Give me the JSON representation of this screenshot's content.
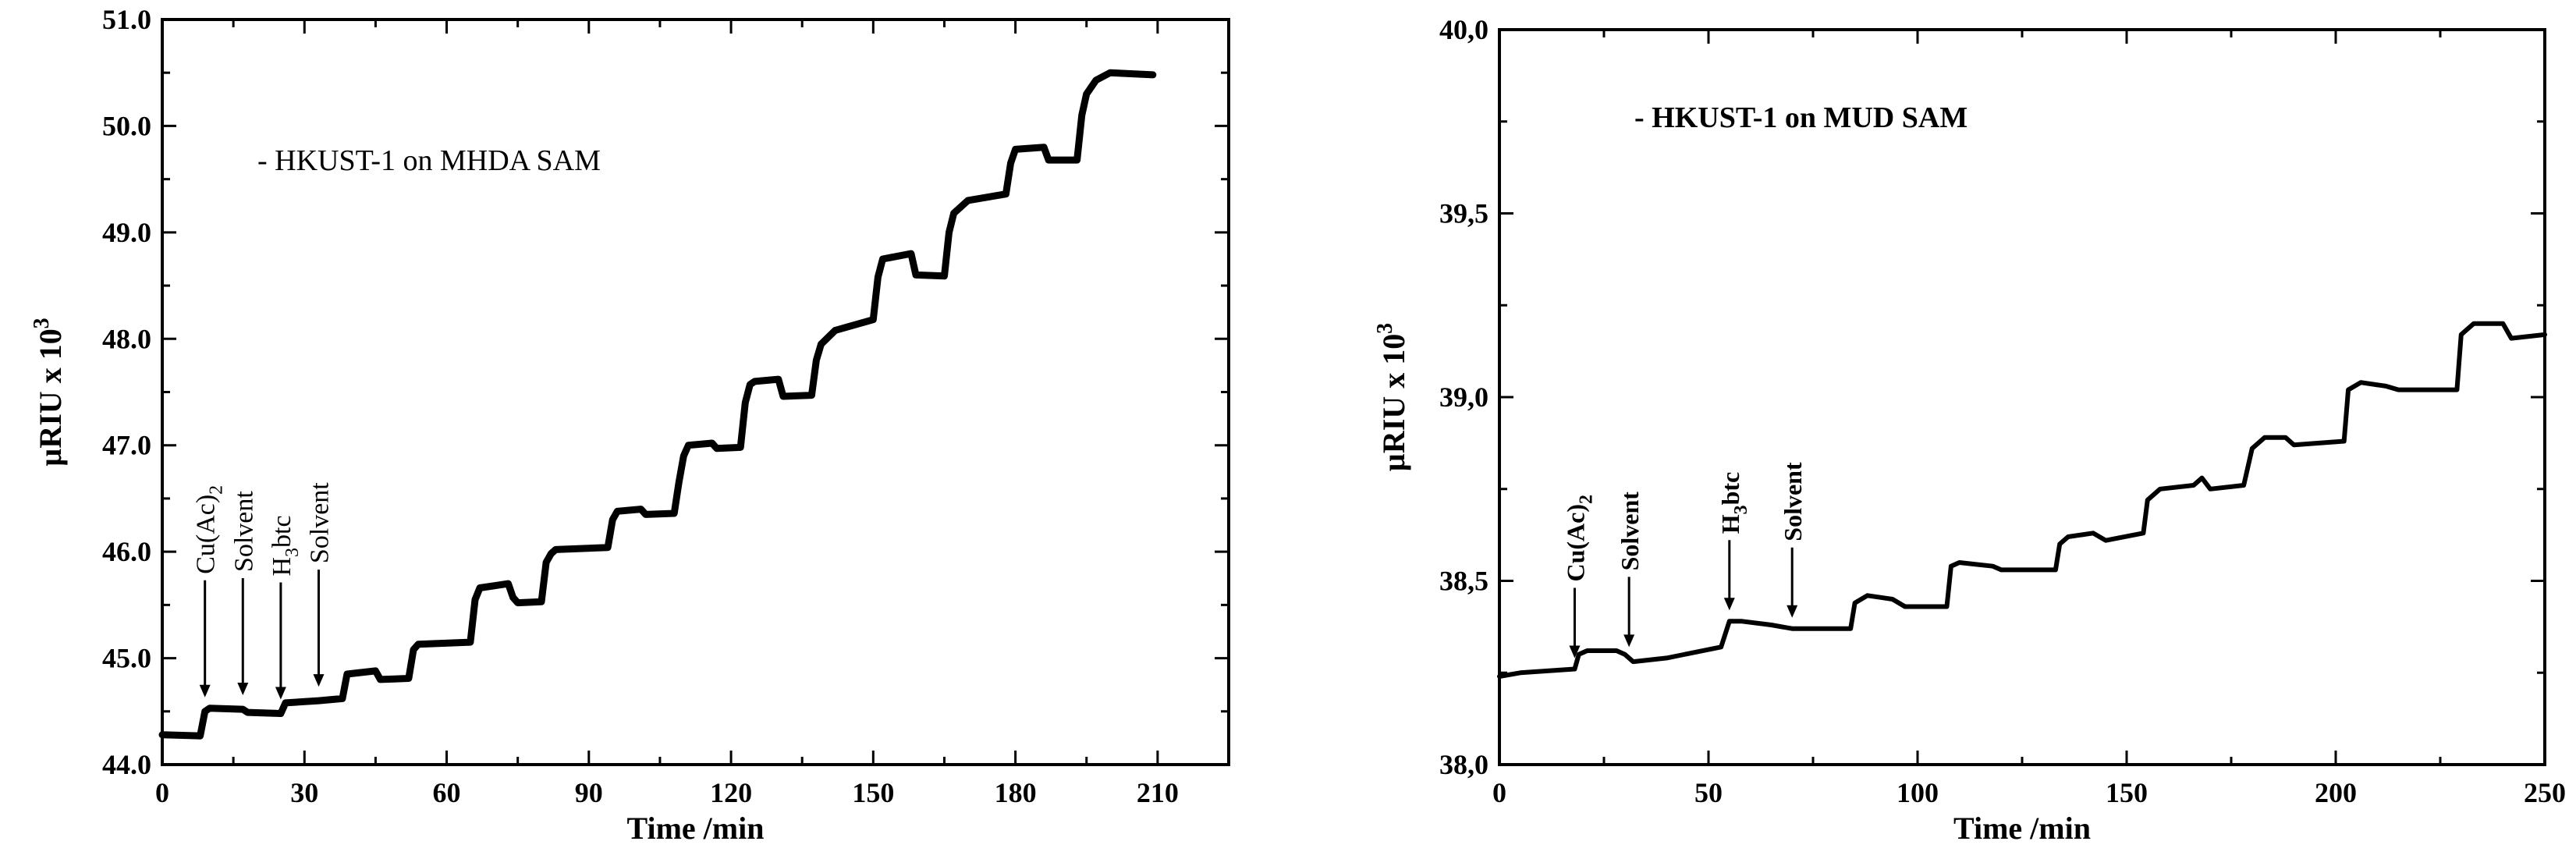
{
  "chart_data": [
    {
      "type": "line",
      "xlabel": "Time /min",
      "ylabel_main": "µRIU x 10",
      "ylabel_exp": "3",
      "xlim": [
        0,
        225
      ],
      "ylim": [
        44.0,
        51.0
      ],
      "xticks": [
        "0",
        "30",
        "60",
        "90",
        "120",
        "150",
        "180",
        "210"
      ],
      "yticks": [
        "44.0",
        "45.0",
        "46.0",
        "47.0",
        "48.0",
        "49.0",
        "50.0",
        "51.0"
      ],
      "legend": "- HKUST-1 on MHDA SAM",
      "grid": false,
      "annotations": [
        {
          "main": "Cu(Ac)",
          "sub": "2",
          "x": 9
        },
        {
          "main": "Solvent",
          "sub": "",
          "x": 17
        },
        {
          "main": "H",
          "sub": "3",
          "tail": "btc",
          "x": 25
        },
        {
          "main": "Solvent",
          "sub": "",
          "x": 33
        }
      ],
      "series": [
        {
          "x": [
            0,
            8,
            9,
            10,
            17,
            18,
            25,
            26,
            33,
            38,
            39,
            45,
            46,
            52,
            53,
            54,
            65,
            66,
            67,
            73,
            74,
            75,
            80,
            81,
            82,
            83,
            94,
            95,
            96,
            101,
            102,
            108,
            109,
            110,
            111,
            116,
            117,
            122,
            123,
            124,
            125,
            130,
            131,
            137,
            138,
            139,
            142,
            150,
            151,
            152,
            158,
            159,
            165,
            166,
            167,
            170,
            178,
            179,
            180,
            186,
            187,
            193,
            194,
            195,
            197,
            200,
            209
          ],
          "y": [
            44.28,
            44.27,
            44.5,
            44.53,
            44.52,
            44.49,
            44.48,
            44.58,
            44.6,
            44.62,
            44.85,
            44.88,
            44.8,
            44.81,
            45.08,
            45.13,
            45.15,
            45.55,
            45.66,
            45.7,
            45.57,
            45.52,
            45.53,
            45.9,
            45.98,
            46.02,
            46.04,
            46.3,
            46.38,
            46.4,
            46.35,
            46.36,
            46.65,
            46.9,
            47.0,
            47.02,
            46.97,
            46.98,
            47.4,
            47.57,
            47.6,
            47.62,
            47.46,
            47.47,
            47.8,
            47.95,
            48.08,
            48.18,
            48.58,
            48.75,
            48.8,
            48.6,
            48.59,
            49.0,
            49.18,
            49.3,
            49.36,
            49.65,
            49.78,
            49.8,
            49.68,
            49.68,
            50.1,
            50.3,
            50.43,
            50.5,
            50.48
          ]
        }
      ]
    },
    {
      "type": "line",
      "xlabel": "Time /min",
      "ylabel_main": "µRIU x 10",
      "ylabel_exp": "3",
      "xlim": [
        0,
        250
      ],
      "ylim": [
        38.0,
        40.0
      ],
      "xticks": [
        "0",
        "50",
        "100",
        "150",
        "200",
        "250"
      ],
      "yticks": [
        "38,0",
        "38,5",
        "39,0",
        "39,5",
        "40,0"
      ],
      "legend": "- HKUST-1 on MUD SAM",
      "grid": false,
      "annotations": [
        {
          "main": "Cu(Ac)",
          "sub": "2",
          "x": 18
        },
        {
          "main": "Solvent",
          "sub": "",
          "x": 31
        },
        {
          "main": "H",
          "sub": "3",
          "tail": "btc",
          "x": 55
        },
        {
          "main": "Solvent",
          "sub": "",
          "x": 70
        }
      ],
      "series": [
        {
          "x": [
            0,
            5,
            18,
            19,
            21,
            28,
            30,
            32,
            40,
            53,
            55,
            58,
            65,
            70,
            84,
            85,
            88,
            94,
            97,
            107,
            108,
            110,
            118,
            120,
            133,
            134,
            136,
            142,
            145,
            154,
            155,
            158,
            166,
            168,
            170,
            178,
            180,
            183,
            188,
            190,
            202,
            203,
            206,
            212,
            215,
            229,
            230,
            233,
            240,
            242,
            250
          ],
          "y": [
            38.24,
            38.25,
            38.26,
            38.3,
            38.31,
            38.31,
            38.3,
            38.28,
            38.29,
            38.32,
            38.39,
            38.39,
            38.38,
            38.37,
            38.37,
            38.44,
            38.46,
            38.45,
            38.43,
            38.43,
            38.54,
            38.55,
            38.54,
            38.53,
            38.53,
            38.6,
            38.62,
            38.63,
            38.61,
            38.63,
            38.72,
            38.75,
            38.76,
            38.78,
            38.75,
            38.76,
            38.86,
            38.89,
            38.89,
            38.87,
            38.88,
            39.02,
            39.04,
            39.03,
            39.02,
            39.02,
            39.17,
            39.2,
            39.2,
            39.16,
            39.17
          ]
        }
      ]
    }
  ]
}
